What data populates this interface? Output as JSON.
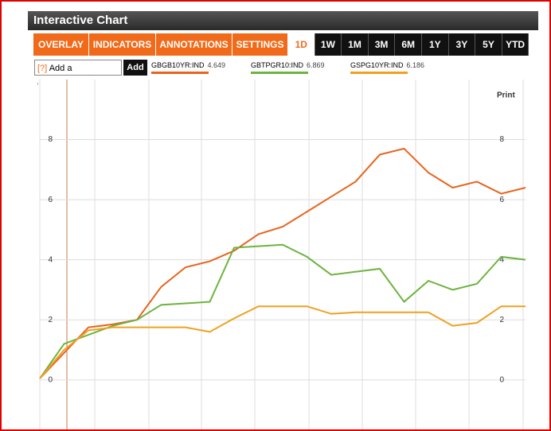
{
  "header": {
    "title": "Interactive Chart"
  },
  "toolbar": {
    "menus": [
      "OVERLAY ▼",
      "INDICATORS ▼",
      "ANNOTATIONS ▼",
      "SETTINGS ▼"
    ],
    "ranges": [
      "1D",
      "1W",
      "1M",
      "3M",
      "6M",
      "1Y",
      "3Y",
      "5Y",
      "YTD"
    ],
    "active_range": "1D"
  },
  "comparison": {
    "help": "[?]",
    "placeholder": "Add a Comparison",
    "button": "Add"
  },
  "print": "Print",
  "chart": {
    "type": "line",
    "x": [
      0,
      5,
      10,
      15,
      20,
      25,
      30,
      35,
      40,
      45,
      50,
      55,
      60,
      65,
      70,
      75,
      80,
      85,
      90,
      95,
      100
    ],
    "xlim": [
      0,
      100
    ],
    "ylim": [
      -1.7,
      10
    ],
    "yticks": [
      0,
      2,
      4,
      6,
      8
    ],
    "grid": true,
    "series": [
      {
        "name": "GBGB10YR:IND",
        "last": "4.649",
        "color": "#e8641e",
        "values": [
          0.05,
          0.9,
          1.75,
          1.85,
          2.0,
          3.1,
          3.75,
          3.95,
          4.3,
          4.85,
          5.1,
          5.6,
          6.1,
          6.6,
          7.5,
          7.7,
          6.9,
          6.4,
          6.6,
          6.2,
          6.4
        ]
      },
      {
        "name": "GBTPGR10:IND",
        "last": "6.869",
        "color": "#6db33f",
        "values": [
          0.05,
          1.2,
          1.5,
          1.8,
          2.0,
          2.5,
          2.55,
          2.6,
          4.4,
          4.45,
          4.5,
          4.1,
          3.5,
          3.6,
          3.7,
          2.6,
          3.3,
          3.0,
          3.2,
          4.1,
          4.0
        ]
      },
      {
        "name": "GSPG10YR:IND",
        "last": "6.186",
        "color": "#f0a020",
        "values": [
          0.05,
          1.0,
          1.65,
          1.75,
          1.75,
          1.75,
          1.75,
          1.6,
          2.05,
          2.45,
          2.45,
          2.45,
          2.2,
          2.25,
          2.25,
          2.25,
          2.25,
          1.8,
          1.9,
          2.45,
          2.45
        ]
      }
    ]
  }
}
